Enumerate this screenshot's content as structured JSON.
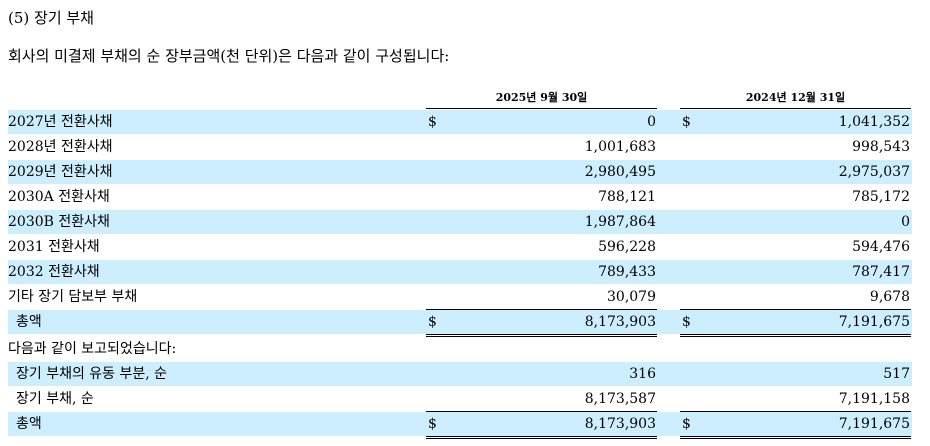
{
  "section_title": "(5) 장기 부채",
  "intro": "회사의 미결제 부채의 순 장부금액(천 단위)은 다음과 같이 구성됩니다:",
  "columns": {
    "col_2025": "2025년 9월 30일",
    "col_2024": "2024년 12월 31일"
  },
  "rows": [
    {
      "label": "2027년 전환사채",
      "cur_a": "$",
      "a": "0",
      "cur_b": "$",
      "b": "1,041,352"
    },
    {
      "label": "2028년 전환사채",
      "cur_a": "",
      "a": "1,001,683",
      "cur_b": "",
      "b": "998,543"
    },
    {
      "label": "2029년 전환사채",
      "cur_a": "",
      "a": "2,980,495",
      "cur_b": "",
      "b": "2,975,037"
    },
    {
      "label": "2030A 전환사채",
      "cur_a": "",
      "a": "788,121",
      "cur_b": "",
      "b": "785,172"
    },
    {
      "label": "2030B 전환사채",
      "cur_a": "",
      "a": "1,987,864",
      "cur_b": "",
      "b": "0"
    },
    {
      "label": "2031 전환사채",
      "cur_a": "",
      "a": "596,228",
      "cur_b": "",
      "b": "594,476"
    },
    {
      "label": "2032 전환사채",
      "cur_a": "",
      "a": "789,433",
      "cur_b": "",
      "b": "787,417"
    },
    {
      "label": "기타 장기 담보부 부채",
      "cur_a": "",
      "a": "30,079",
      "cur_b": "",
      "b": "9,678"
    },
    {
      "label": "총액",
      "cur_a": "$",
      "a": "8,173,903",
      "cur_b": "$",
      "b": "7,191,675"
    },
    {
      "label": "다음과 같이 보고되었습니다:",
      "cur_a": "",
      "a": "",
      "cur_b": "",
      "b": ""
    },
    {
      "label": "장기 부채의 유동 부분, 순",
      "cur_a": "",
      "a": "316",
      "cur_b": "",
      "b": "517"
    },
    {
      "label": "장기 부채, 순",
      "cur_a": "",
      "a": "8,173,587",
      "cur_b": "",
      "b": "7,191,158"
    },
    {
      "label": "총액",
      "cur_a": "$",
      "a": "8,173,903",
      "cur_b": "$",
      "b": "7,191,675"
    }
  ]
}
